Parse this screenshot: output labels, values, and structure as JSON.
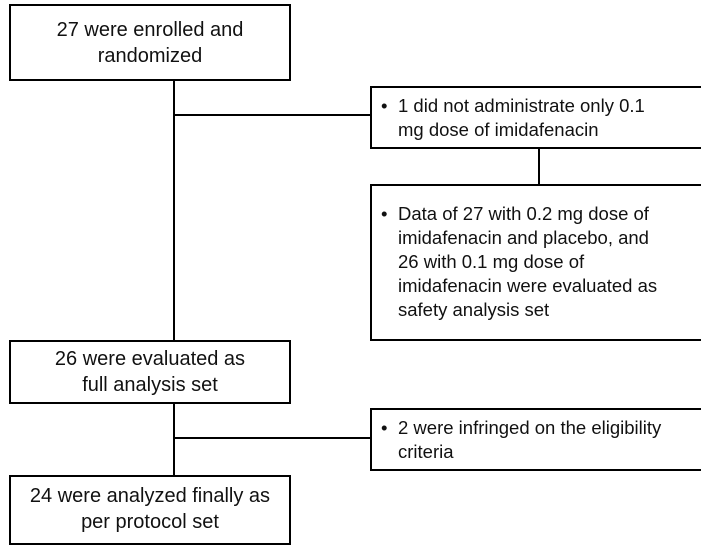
{
  "nodes": [
    {
      "lines": [
        "27 were enrolled and",
        "randomized"
      ]
    },
    {
      "lines": [
        "1 did not administrate only 0.1",
        "mg dose of imidafenacin"
      ]
    },
    {
      "lines": [
        "Data of 27 with 0.2 mg dose of",
        "imidafenacin and placebo, and",
        "26 with 0.1 mg dose of",
        "imidafenacin were evaluated as",
        "safety analysis set"
      ]
    },
    {
      "lines": [
        "26 were evaluated as",
        "full analysis set"
      ]
    },
    {
      "lines": [
        "2 were infringed on the eligibility",
        "criteria"
      ]
    },
    {
      "lines": [
        "24 were analyzed finally as",
        "per protocol set"
      ]
    }
  ]
}
